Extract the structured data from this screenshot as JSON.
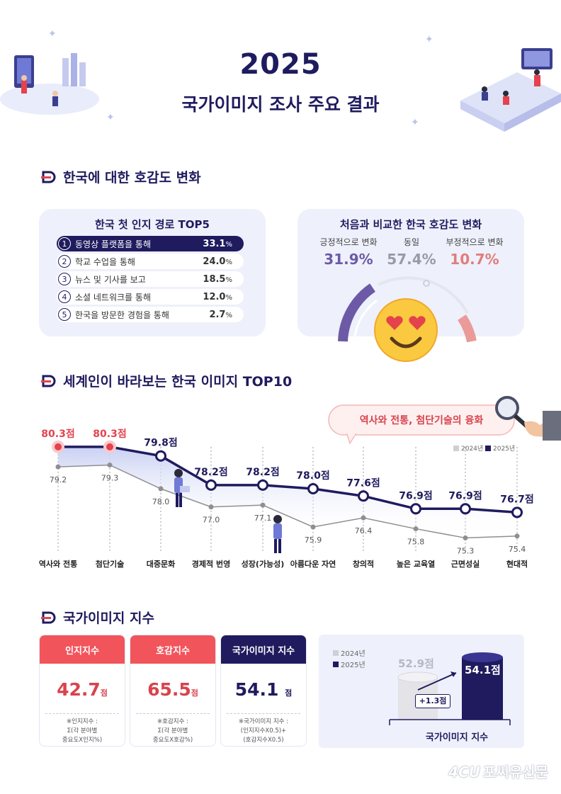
{
  "header": {
    "year": "2025",
    "title": "국가이미지 조사 주요 결과"
  },
  "section1": {
    "title": "한국에 대한 호감도 변화",
    "routes": {
      "title": "한국 첫 인지 경로 TOP5",
      "items": [
        {
          "rank": "1",
          "label": "동영상 플랫폼을 통해",
          "value": "33.1",
          "unit": "%"
        },
        {
          "rank": "2",
          "label": "학교 수업을 통해",
          "value": "24.0",
          "unit": "%"
        },
        {
          "rank": "3",
          "label": "뉴스 및 기사를 보고",
          "value": "18.5",
          "unit": "%"
        },
        {
          "rank": "4",
          "label": "소셜 네트워크를 통해",
          "value": "12.0",
          "unit": "%"
        },
        {
          "rank": "5",
          "label": "한국을 방문한 경험을 통해",
          "value": "2.7",
          "unit": "%"
        }
      ]
    },
    "change": {
      "title": "처음과 비교한 한국 호감도 변화",
      "positive_label": "긍정적으로 변화",
      "positive_value": "31.9%",
      "same_label": "동일",
      "same_value": "57.4%",
      "negative_label": "부정적으로 변화",
      "negative_value": "10.7%"
    }
  },
  "section2": {
    "title": "세계인이 바라보는 한국 이미지 TOP10",
    "callout": "역사와 전통, 첨단기술의 융화",
    "legend_2024": "2024년",
    "legend_2025": "2025년"
  },
  "chart_data": {
    "type": "line",
    "title": "세계인이 바라보는 한국 이미지 TOP10",
    "categories": [
      "역사와 전통",
      "첨단기술",
      "대중문화",
      "경제적 번영",
      "성장(가능성)",
      "아름다운 자연",
      "창의적",
      "높은 교육열",
      "근면성실",
      "현대적"
    ],
    "series": [
      {
        "name": "2025년",
        "values": [
          80.3,
          80.3,
          79.8,
          78.2,
          78.2,
          78.0,
          77.6,
          76.9,
          76.9,
          76.7
        ],
        "labels": [
          "80.3점",
          "80.3점",
          "79.8점",
          "78.2점",
          "78.2점",
          "78.0점",
          "77.6점",
          "76.9점",
          "76.9점",
          "76.7점"
        ],
        "color": "#1f1b5e"
      },
      {
        "name": "2024년",
        "values": [
          79.2,
          79.3,
          78.0,
          77.0,
          77.1,
          75.9,
          76.4,
          75.8,
          75.3,
          75.4
        ],
        "labels": [
          "79.2",
          "79.3",
          "78.0",
          "77.0",
          "77.1",
          "75.9",
          "76.4",
          "75.8",
          "75.3",
          "75.4"
        ],
        "color": "#8f8f8f"
      }
    ],
    "ylim": [
      74.5,
      81.5
    ],
    "xlabel": "",
    "ylabel": ""
  },
  "section3": {
    "title": "국가이미지 지수",
    "cards": [
      {
        "head": "인지지수",
        "value": "42.7",
        "unit": "점",
        "note1": "※인지지수 :",
        "note2": "Σ(각 분야별",
        "note3": "중요도X인지%)"
      },
      {
        "head": "호감지수",
        "value": "65.5",
        "unit": "점",
        "note1": "※호감지수 :",
        "note2": "Σ(각 분야별",
        "note3": "중요도X호감%)"
      },
      {
        "head": "국가이미지 지수",
        "value": "54.1",
        "unit": "점",
        "note1": "※국가이미지 지수 :",
        "note2": "(인지지수X0.5)+",
        "note3": "(호감지수X0.5)"
      }
    ],
    "compare": {
      "legend_2024": "2024년",
      "legend_2025": "2025년",
      "value_2024": "52.9점",
      "value_2025": "54.1점",
      "diff": "+1.3점",
      "label": "국가이미지 지수"
    }
  },
  "watermark": "포씨유신문",
  "colors": {
    "navy": "#1f1b5e",
    "red": "#e4424d",
    "gray": "#8f8f8f"
  }
}
